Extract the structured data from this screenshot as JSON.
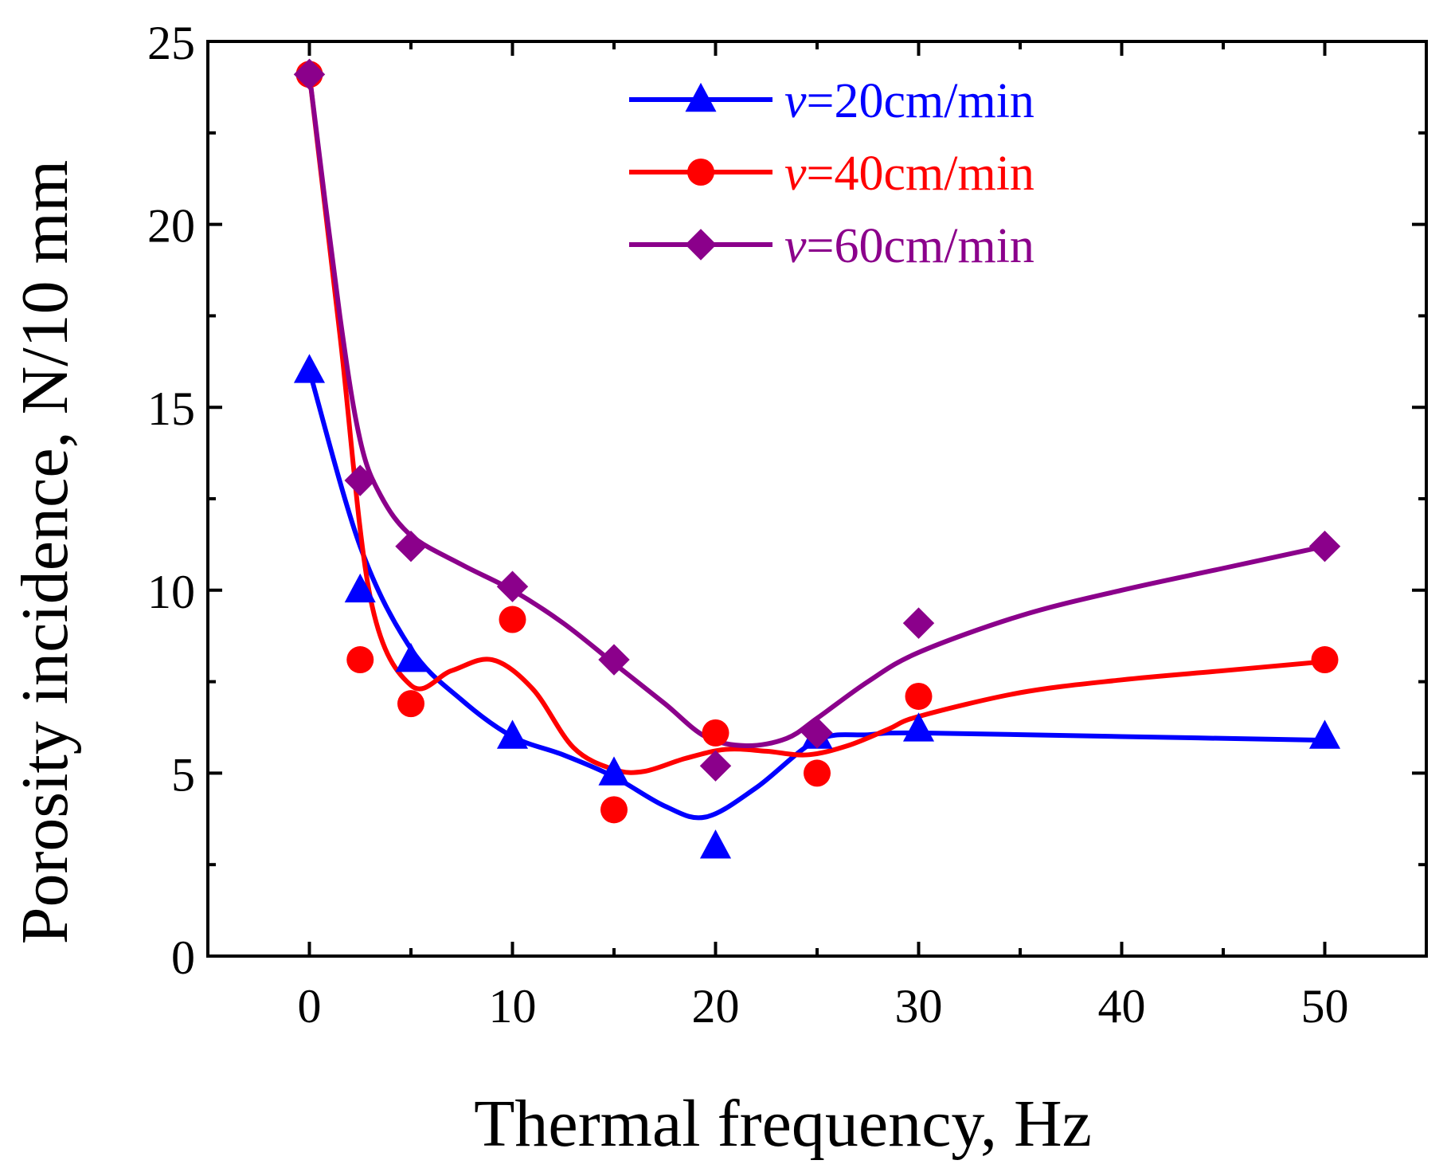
{
  "chart_data": {
    "type": "line",
    "title": "",
    "xlabel": "Thermal frequency, Hz",
    "ylabel": "Porosity incidence, N/10 mm",
    "xlim": [
      -5,
      55
    ],
    "ylim": [
      0,
      25
    ],
    "xticks": [
      0,
      10,
      20,
      30,
      40,
      50
    ],
    "xticks_minor": [
      5,
      15,
      25,
      35,
      45
    ],
    "yticks": [
      0,
      5,
      10,
      15,
      20,
      25
    ],
    "yticks_minor": [
      2.5,
      7.5,
      12.5,
      17.5,
      22.5
    ],
    "legend_position": "top-center",
    "series": [
      {
        "name": "v=20cm/min",
        "name_prefix": "v",
        "name_suffix": "=20cm/min",
        "color": "#0000ff",
        "marker": "triangle",
        "x": [
          0,
          2.5,
          5,
          10,
          15,
          20,
          25,
          30,
          50
        ],
        "values": [
          16,
          10,
          8.1,
          6,
          5,
          3,
          6,
          6.2,
          6
        ],
        "fit_x": [
          0,
          2.5,
          5,
          7.5,
          10,
          12.5,
          15,
          17.5,
          19.5,
          22,
          25,
          27.5,
          30,
          40,
          50
        ],
        "fit_values": [
          16,
          11.2,
          8.4,
          7.0,
          6.0,
          5.5,
          4.9,
          4.1,
          3.8,
          4.6,
          5.9,
          6.05,
          6.1,
          6.0,
          5.9
        ]
      },
      {
        "name": "v=40cm/min",
        "name_prefix": "v",
        "name_suffix": "=40cm/min",
        "color": "#ff0000",
        "marker": "circle",
        "x": [
          0,
          2.5,
          5,
          10,
          15,
          20,
          25,
          30,
          50
        ],
        "values": [
          24.1,
          8.1,
          6.9,
          9.2,
          4,
          6.1,
          5,
          7.1,
          8.1
        ],
        "fit_x": [
          0,
          1.5,
          3,
          5,
          7,
          9,
          11,
          13,
          15,
          16.5,
          18.5,
          20.5,
          22.5,
          24.5,
          26.5,
          28.5,
          30,
          35,
          40,
          45,
          50
        ],
        "fit_values": [
          24.1,
          17.0,
          9.8,
          7.4,
          7.8,
          8.1,
          7.3,
          5.7,
          5.1,
          5.05,
          5.4,
          5.65,
          5.6,
          5.5,
          5.75,
          6.2,
          6.55,
          7.2,
          7.55,
          7.8,
          8.05
        ]
      },
      {
        "name": "v=60cm/min",
        "name_prefix": "v",
        "name_suffix": "=60cm/min",
        "color": "#8b008b",
        "marker": "diamond",
        "x": [
          0,
          2.5,
          5,
          10,
          15,
          20,
          25,
          30,
          50
        ],
        "values": [
          24.1,
          13,
          11.2,
          10.1,
          8.1,
          5.2,
          6.1,
          9.1,
          11.2
        ],
        "fit_x": [
          0,
          1.5,
          2.5,
          3.5,
          5,
          7.5,
          10,
          12.5,
          15,
          17.5,
          19.5,
          21.5,
          23.5,
          25,
          27.5,
          30,
          35,
          40,
          45,
          50
        ],
        "fit_values": [
          24.1,
          17.5,
          14.1,
          12.6,
          11.5,
          10.7,
          10.0,
          9.1,
          8.0,
          6.9,
          6.0,
          5.75,
          5.95,
          6.5,
          7.5,
          8.3,
          9.3,
          10.0,
          10.6,
          11.2
        ]
      }
    ]
  }
}
